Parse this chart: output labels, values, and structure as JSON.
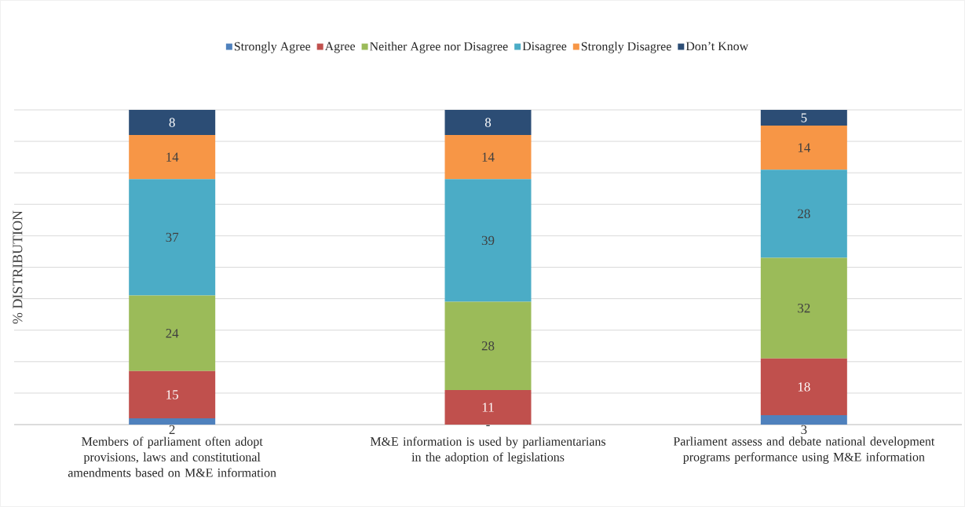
{
  "chart_data": {
    "type": "bar",
    "stacked": true,
    "ylabel": "% DISTRIBUTION",
    "categories": [
      "Members of parliament often adopt provisions, laws and constitutional amendments based on M&E information",
      "M&E information is used by parliamentarians in the adoption of legislations",
      "Parliament assess and debate national development programs performance using M&E information"
    ],
    "series": [
      {
        "name": "Strongly Agree",
        "color": "#4f81bd",
        "values": [
          2,
          null,
          3
        ],
        "value_labels": [
          "2",
          "-",
          "3"
        ]
      },
      {
        "name": "Agree",
        "color": "#c0504d",
        "values": [
          15,
          11,
          18
        ]
      },
      {
        "name": "Neither Agree nor Disagree",
        "color": "#9bbb59",
        "values": [
          24,
          28,
          32
        ]
      },
      {
        "name": "Disagree",
        "color": "#4bacc6",
        "values": [
          37,
          39,
          28
        ]
      },
      {
        "name": "Strongly Disagree",
        "color": "#f79646",
        "values": [
          14,
          14,
          14
        ]
      },
      {
        "name": "Don’t Know",
        "color": "#2c4d75",
        "values": [
          8,
          8,
          5
        ]
      }
    ],
    "ylim": [
      0,
      100
    ],
    "tick_labels": "x",
    "grid": "y",
    "legend": "top",
    "data_labels": true
  }
}
